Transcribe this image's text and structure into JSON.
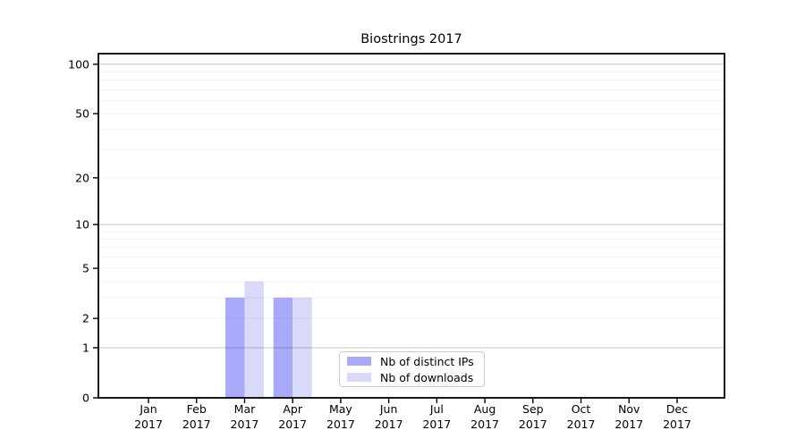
{
  "chart_data": {
    "type": "bar",
    "title": "Biostrings 2017",
    "categories": [
      "Jan",
      "Feb",
      "Mar",
      "Apr",
      "May",
      "Jun",
      "Jul",
      "Aug",
      "Sep",
      "Oct",
      "Nov",
      "Dec"
    ],
    "category_sublabel": "2017",
    "series": [
      {
        "name": "Nb of distinct IPs",
        "color": "#aaaafa",
        "values": [
          0,
          0,
          3,
          3,
          0,
          0,
          0,
          0,
          0,
          0,
          0,
          0
        ]
      },
      {
        "name": "Nb of downloads",
        "color": "#d9d9f9",
        "values": [
          0,
          0,
          4,
          3,
          0,
          0,
          0,
          0,
          0,
          0,
          0,
          0
        ]
      }
    ],
    "y_axis": {
      "scale": "log1p",
      "tick_values": [
        0,
        1,
        2,
        5,
        10,
        20,
        50,
        100
      ],
      "major_gridlines": [
        1,
        10,
        100
      ],
      "minor_gridlines": [
        2,
        3,
        4,
        5,
        6,
        7,
        8,
        9,
        20,
        30,
        40,
        50,
        60,
        70,
        80,
        90
      ],
      "range": [
        0,
        116
      ]
    },
    "x_axis": {
      "tick_label_lines_example": [
        "Jan",
        "2017"
      ]
    },
    "legend": {
      "position": "inside-bottom-center",
      "entries": [
        "Nb of distinct IPs",
        "Nb of downloads"
      ]
    },
    "grid": true
  },
  "colors": {
    "axis": "#000000",
    "gridline_base": "#000000",
    "major_gridline_opacity": 0.22,
    "minor_gridline_opacity": 0.06,
    "tick_text": "#000000",
    "legend_border": "#cccccc",
    "background": "#ffffff"
  }
}
